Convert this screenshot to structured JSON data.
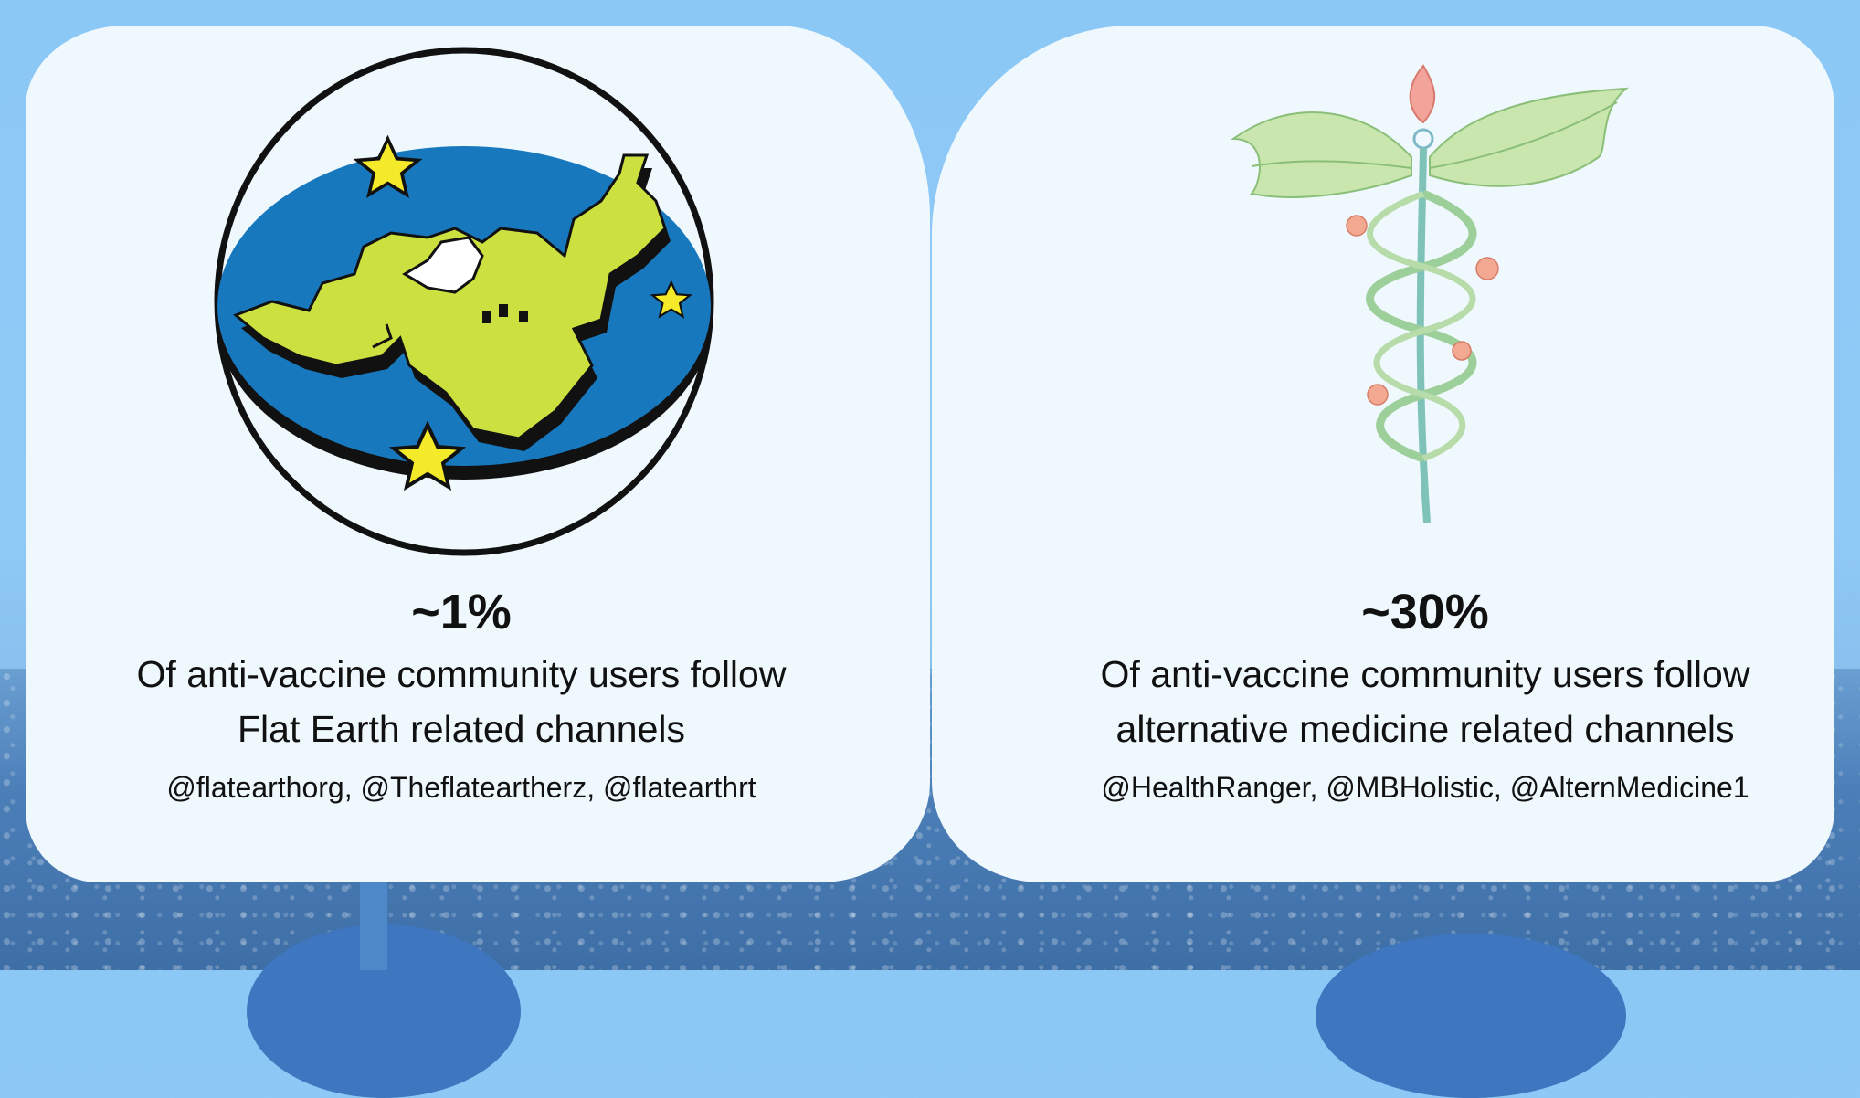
{
  "cards": [
    {
      "percent": "~1%",
      "line1": "Of anti-vaccine community users follow",
      "line2": "Flat Earth related channels",
      "handles": "@flatearthorg, @Theflatearther­z, @flatearthrt",
      "illustration": "flat-earth-map-icon"
    },
    {
      "percent": "~30%",
      "line1": "Of anti-vaccine community users follow",
      "line2": "alternative medicine related channels",
      "handles": "@HealthRanger, @MBHolistic, @AlternMedicine1",
      "illustration": "caduceus-plant-icon"
    }
  ],
  "colors": {
    "background": "#8cc8f6",
    "card": "#eef8fd",
    "earth_ocean": "#1878bd",
    "earth_land": "#cce03f",
    "stars": "#f5ea2a",
    "leaves": "#bfe0a8"
  }
}
